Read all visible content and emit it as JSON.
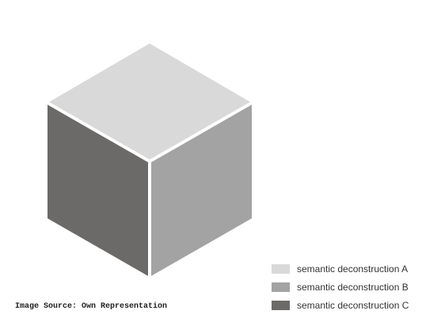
{
  "diagram": {
    "faces": [
      {
        "key": "top",
        "color": "#d9d9d9"
      },
      {
        "key": "right",
        "color": "#a3a3a3"
      },
      {
        "key": "left",
        "color": "#6c6a68"
      }
    ],
    "edge_color": "#ffffff"
  },
  "legend": {
    "items": [
      {
        "label": "semantic deconstruction A",
        "color": "#d9d9d9"
      },
      {
        "label": "semantic deconstruction B",
        "color": "#a3a3a3"
      },
      {
        "label": "semantic deconstruction C",
        "color": "#6c6a68"
      }
    ]
  },
  "source": {
    "text": "Image Source: Own Representation"
  }
}
